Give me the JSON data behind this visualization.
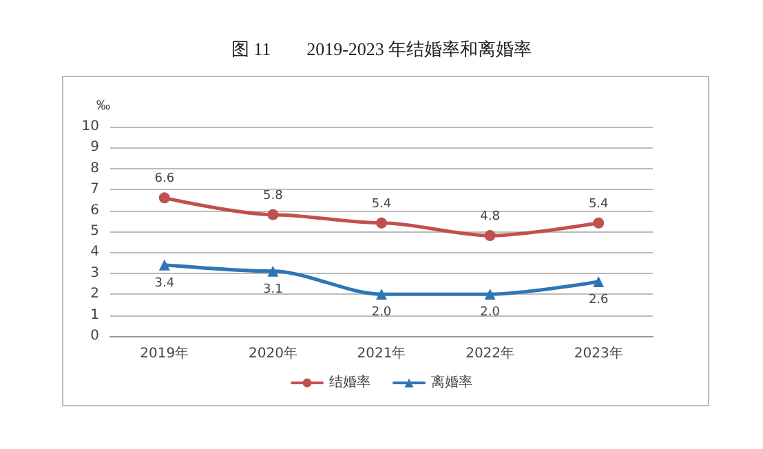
{
  "chart_data": {
    "type": "line",
    "title": "图 11　　2019-2023 年结婚率和离婚率",
    "ylabel": "‰",
    "categories": [
      "2019年",
      "2020年",
      "2021年",
      "2022年",
      "2023年"
    ],
    "series": [
      {
        "name": "结婚率",
        "color": "#c0504d",
        "values": [
          6.6,
          5.8,
          5.4,
          4.8,
          5.4
        ],
        "marker": "circle"
      },
      {
        "name": "离婚率",
        "color": "#2e75b6",
        "values": [
          3.4,
          3.1,
          2.0,
          2.0,
          2.6
        ],
        "value_labels": [
          "3.4",
          "3.1",
          "2.0",
          "2.0",
          "2.6"
        ],
        "marker": "triangle"
      }
    ],
    "ylim": [
      0,
      10
    ],
    "yticks": [
      0,
      1,
      2,
      3,
      4,
      5,
      6,
      7,
      8,
      9,
      10
    ],
    "grid": "y",
    "legend": "bottom",
    "data_labels": true,
    "line_style": "solid"
  }
}
